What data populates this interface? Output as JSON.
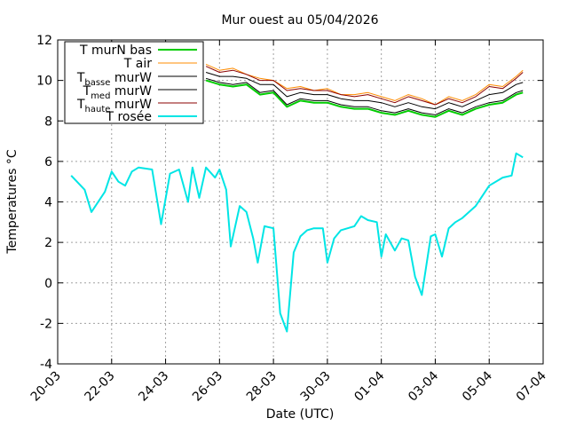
{
  "chart_data": {
    "type": "line",
    "title": "Mur ouest au 05/04/2026",
    "xlabel": "Date (UTC)",
    "ylabel": "Temperatures °C",
    "ylim": [
      -4,
      12
    ],
    "yticks": [
      "-4",
      "-2",
      "0",
      "2",
      "4",
      "6",
      "8",
      "10",
      "12"
    ],
    "xlim": [
      "2026-03-20",
      "2026-04-07"
    ],
    "xticks": [
      "20-03",
      "22-03",
      "24-03",
      "26-03",
      "28-03",
      "30-03",
      "01-04",
      "03-04",
      "05-04",
      "07-04"
    ],
    "grid": true,
    "legend": "top-left",
    "series": [
      {
        "name": "T murN bas",
        "color": "#00cc00",
        "x": [
          "2026-03-25T12:00",
          "2026-03-26T00:00",
          "2026-03-26T12:00",
          "2026-03-27T00:00",
          "2026-03-27T12:00",
          "2026-03-28T00:00",
          "2026-03-28T12:00",
          "2026-03-29T00:00",
          "2026-03-29T12:00",
          "2026-03-30T00:00",
          "2026-03-30T12:00",
          "2026-03-31T00:00",
          "2026-03-31T12:00",
          "2026-04-01T00:00",
          "2026-04-01T12:00",
          "2026-04-02T00:00",
          "2026-04-02T12:00",
          "2026-04-03T00:00",
          "2026-04-03T12:00",
          "2026-04-04T00:00",
          "2026-04-04T12:00",
          "2026-04-05T00:00",
          "2026-04-05T12:00",
          "2026-04-06T00:00",
          "2026-04-06T06:00"
        ],
        "y": [
          10.0,
          9.8,
          9.7,
          9.8,
          9.3,
          9.4,
          8.7,
          9.0,
          8.9,
          8.9,
          8.7,
          8.6,
          8.6,
          8.4,
          8.3,
          8.5,
          8.3,
          8.2,
          8.5,
          8.3,
          8.6,
          8.8,
          8.9,
          9.3,
          9.4
        ]
      },
      {
        "name": "T air",
        "color": "#ff8c00",
        "x": [
          "2026-03-25T12:00",
          "2026-03-26T00:00",
          "2026-03-26T12:00",
          "2026-03-27T00:00",
          "2026-03-27T12:00",
          "2026-03-28T00:00",
          "2026-03-28T12:00",
          "2026-03-29T00:00",
          "2026-03-29T12:00",
          "2026-03-30T00:00",
          "2026-03-30T12:00",
          "2026-03-31T00:00",
          "2026-03-31T12:00",
          "2026-04-01T00:00",
          "2026-04-01T12:00",
          "2026-04-02T00:00",
          "2026-04-02T12:00",
          "2026-04-03T00:00",
          "2026-04-03T12:00",
          "2026-04-04T00:00",
          "2026-04-04T12:00",
          "2026-04-05T00:00",
          "2026-04-05T12:00",
          "2026-04-06T00:00",
          "2026-04-06T06:00"
        ],
        "y": [
          10.8,
          10.5,
          10.6,
          10.3,
          10.1,
          10.0,
          9.6,
          9.7,
          9.5,
          9.6,
          9.3,
          9.3,
          9.4,
          9.2,
          9.0,
          9.3,
          9.1,
          8.8,
          9.2,
          9.0,
          9.3,
          9.8,
          9.7,
          10.2,
          10.5
        ]
      },
      {
        "name": "T basse murW",
        "color": "#000000",
        "x": [
          "2026-03-25T12:00",
          "2026-03-26T00:00",
          "2026-03-26T12:00",
          "2026-03-27T00:00",
          "2026-03-27T12:00",
          "2026-03-28T00:00",
          "2026-03-28T12:00",
          "2026-03-29T00:00",
          "2026-03-29T12:00",
          "2026-03-30T00:00",
          "2026-03-30T12:00",
          "2026-03-31T00:00",
          "2026-03-31T12:00",
          "2026-04-01T00:00",
          "2026-04-01T12:00",
          "2026-04-02T00:00",
          "2026-04-02T12:00",
          "2026-04-03T00:00",
          "2026-04-03T12:00",
          "2026-04-04T00:00",
          "2026-04-04T12:00",
          "2026-04-05T00:00",
          "2026-04-05T12:00",
          "2026-04-06T00:00",
          "2026-04-06T06:00"
        ],
        "y": [
          10.1,
          9.9,
          9.8,
          9.9,
          9.4,
          9.5,
          8.8,
          9.1,
          9.0,
          9.0,
          8.8,
          8.7,
          8.7,
          8.5,
          8.4,
          8.6,
          8.4,
          8.3,
          8.6,
          8.4,
          8.7,
          8.9,
          9.0,
          9.4,
          9.5
        ]
      },
      {
        "name": "T med murW",
        "color": "#000000",
        "x": [
          "2026-03-25T12:00",
          "2026-03-26T00:00",
          "2026-03-26T12:00",
          "2026-03-27T00:00",
          "2026-03-27T12:00",
          "2026-03-28T00:00",
          "2026-03-28T12:00",
          "2026-03-29T00:00",
          "2026-03-29T12:00",
          "2026-03-30T00:00",
          "2026-03-30T12:00",
          "2026-03-31T00:00",
          "2026-03-31T12:00",
          "2026-04-01T00:00",
          "2026-04-01T12:00",
          "2026-04-02T00:00",
          "2026-04-02T12:00",
          "2026-04-03T00:00",
          "2026-04-03T12:00",
          "2026-04-04T00:00",
          "2026-04-04T12:00",
          "2026-04-05T00:00",
          "2026-04-05T12:00",
          "2026-04-06T00:00",
          "2026-04-06T06:00"
        ],
        "y": [
          10.4,
          10.2,
          10.2,
          10.1,
          9.8,
          9.8,
          9.2,
          9.4,
          9.3,
          9.3,
          9.1,
          9.0,
          9.0,
          8.9,
          8.7,
          8.9,
          8.7,
          8.6,
          8.9,
          8.7,
          9.0,
          9.3,
          9.4,
          9.8,
          9.9
        ]
      },
      {
        "name": "T haute murW",
        "color": "#8b0000",
        "x": [
          "2026-03-25T12:00",
          "2026-03-26T00:00",
          "2026-03-26T12:00",
          "2026-03-27T00:00",
          "2026-03-27T12:00",
          "2026-03-28T00:00",
          "2026-03-28T12:00",
          "2026-03-29T00:00",
          "2026-03-29T12:00",
          "2026-03-30T00:00",
          "2026-03-30T12:00",
          "2026-03-31T00:00",
          "2026-03-31T12:00",
          "2026-04-01T00:00",
          "2026-04-01T12:00",
          "2026-04-02T00:00",
          "2026-04-02T12:00",
          "2026-04-03T00:00",
          "2026-04-03T12:00",
          "2026-04-04T00:00",
          "2026-04-04T12:00",
          "2026-04-05T00:00",
          "2026-04-05T12:00",
          "2026-04-06T00:00",
          "2026-04-06T06:00"
        ],
        "y": [
          10.7,
          10.4,
          10.5,
          10.3,
          10.0,
          10.0,
          9.5,
          9.6,
          9.5,
          9.5,
          9.3,
          9.2,
          9.3,
          9.1,
          8.9,
          9.2,
          9.0,
          8.8,
          9.1,
          8.9,
          9.2,
          9.7,
          9.6,
          10.1,
          10.4
        ]
      },
      {
        "name": "T rosée",
        "color": "#00e5e5",
        "x": [
          "2026-03-20T12:00",
          "2026-03-21T00:00",
          "2026-03-21T06:00",
          "2026-03-21T18:00",
          "2026-03-22T00:00",
          "2026-03-22T06:00",
          "2026-03-22T12:00",
          "2026-03-22T18:00",
          "2026-03-23T00:00",
          "2026-03-23T12:00",
          "2026-03-23T20:00",
          "2026-03-24T04:00",
          "2026-03-24T12:00",
          "2026-03-24T20:00",
          "2026-03-25T00:00",
          "2026-03-25T06:00",
          "2026-03-25T12:00",
          "2026-03-25T20:00",
          "2026-03-26T00:00",
          "2026-03-26T06:00",
          "2026-03-26T10:00",
          "2026-03-26T18:00",
          "2026-03-27T00:00",
          "2026-03-27T06:00",
          "2026-03-27T10:00",
          "2026-03-27T16:00",
          "2026-03-28T00:00",
          "2026-03-28T06:00",
          "2026-03-28T12:00",
          "2026-03-28T18:00",
          "2026-03-29T00:00",
          "2026-03-29T06:00",
          "2026-03-29T12:00",
          "2026-03-29T20:00",
          "2026-03-30T00:00",
          "2026-03-30T06:00",
          "2026-03-30T12:00",
          "2026-03-30T18:00",
          "2026-03-31T00:00",
          "2026-03-31T06:00",
          "2026-03-31T12:00",
          "2026-03-31T20:00",
          "2026-04-01T00:00",
          "2026-04-01T04:00",
          "2026-04-01T12:00",
          "2026-04-01T18:00",
          "2026-04-02T00:00",
          "2026-04-02T06:00",
          "2026-04-02T12:00",
          "2026-04-02T20:00",
          "2026-04-03T00:00",
          "2026-04-03T06:00",
          "2026-04-03T12:00",
          "2026-04-03T18:00",
          "2026-04-04T00:00",
          "2026-04-04T12:00",
          "2026-04-05T00:00",
          "2026-04-05T12:00",
          "2026-04-05T20:00",
          "2026-04-06T00:00",
          "2026-04-06T06:00"
        ],
        "y": [
          5.3,
          4.6,
          3.5,
          4.5,
          5.5,
          5.0,
          4.8,
          5.5,
          5.7,
          5.6,
          2.9,
          5.4,
          5.6,
          4.0,
          5.7,
          4.2,
          5.7,
          5.2,
          5.6,
          4.6,
          1.8,
          3.8,
          3.5,
          2.2,
          1.0,
          2.8,
          2.7,
          -1.5,
          -2.4,
          1.5,
          2.3,
          2.6,
          2.7,
          2.7,
          1.0,
          2.2,
          2.6,
          2.7,
          2.8,
          3.3,
          3.1,
          3.0,
          1.3,
          2.4,
          1.6,
          2.2,
          2.1,
          0.3,
          -0.6,
          2.3,
          2.4,
          1.3,
          2.7,
          3.0,
          3.2,
          3.8,
          4.8,
          5.2,
          5.3,
          6.4,
          6.2
        ]
      }
    ]
  }
}
